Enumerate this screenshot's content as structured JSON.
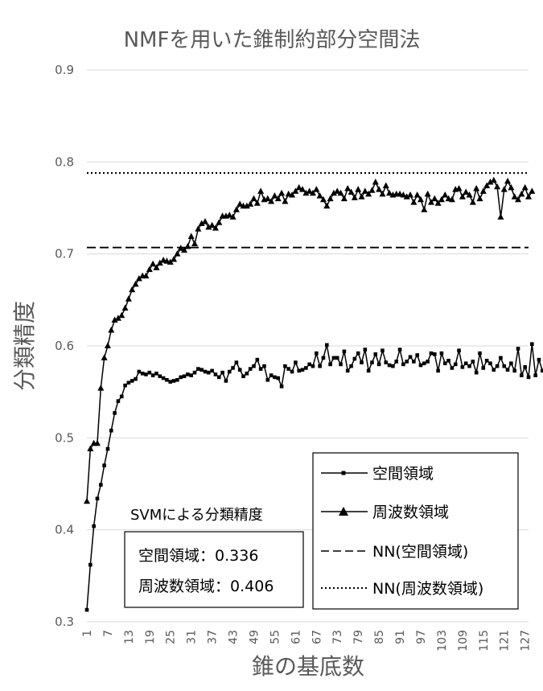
{
  "chart_data": {
    "type": "line",
    "title": "NMFを用いた錐制約部分空間法",
    "xlabel": "錐の基底数",
    "ylabel": "分類精度",
    "ylim": [
      0.3,
      0.9
    ],
    "yticks": [
      "0.3",
      "0.4",
      "0.5",
      "0.6",
      "0.7",
      "0.8",
      "0.9"
    ],
    "xlim": [
      1,
      128
    ],
    "xticks": [
      "1",
      "7",
      "13",
      "19",
      "25",
      "31",
      "37",
      "43",
      "49",
      "55",
      "61",
      "67",
      "73",
      "79",
      "85",
      "91",
      "97",
      "103",
      "109",
      "115",
      "121",
      "127"
    ],
    "grid": true,
    "legend": "bottom-right",
    "series": [
      {
        "name": "空間領域",
        "marker": "square",
        "x_start": 1,
        "values": [
          0.313,
          0.362,
          0.404,
          0.434,
          0.449,
          0.47,
          0.488,
          0.508,
          0.527,
          0.54,
          0.545,
          0.557,
          0.56,
          0.562,
          0.564,
          0.572,
          0.57,
          0.569,
          0.571,
          0.568,
          0.57,
          0.567,
          0.565,
          0.563,
          0.561,
          0.562,
          0.563,
          0.566,
          0.567,
          0.569,
          0.568,
          0.571,
          0.575,
          0.574,
          0.572,
          0.571,
          0.573,
          0.569,
          0.566,
          0.571,
          0.562,
          0.572,
          0.576,
          0.582,
          0.574,
          0.567,
          0.57,
          0.575,
          0.578,
          0.585,
          0.575,
          0.578,
          0.563,
          0.568,
          0.566,
          0.565,
          0.556,
          0.578,
          0.575,
          0.572,
          0.582,
          0.573,
          0.574,
          0.576,
          0.58,
          0.578,
          0.592,
          0.578,
          0.587,
          0.601,
          0.58,
          0.587,
          0.587,
          0.58,
          0.594,
          0.573,
          0.578,
          0.586,
          0.592,
          0.582,
          0.596,
          0.573,
          0.582,
          0.591,
          0.58,
          0.595,
          0.582,
          0.579,
          0.578,
          0.583,
          0.596,
          0.58,
          0.583,
          0.588,
          0.583,
          0.59,
          0.579,
          0.581,
          0.583,
          0.592,
          0.591,
          0.573,
          0.592,
          0.581,
          0.584,
          0.576,
          0.58,
          0.595,
          0.577,
          0.581,
          0.578,
          0.583,
          0.571,
          0.592,
          0.576,
          0.584,
          0.581,
          0.574,
          0.578,
          0.587,
          0.578,
          0.574,
          0.581,
          0.573,
          0.597,
          0.568,
          0.577,
          0.566,
          0.602,
          0.568,
          0.585,
          0.573,
          0.58
        ]
      },
      {
        "name": "周波数領域",
        "marker": "triangle",
        "x_start": 1,
        "values": [
          0.431,
          0.488,
          0.494,
          0.494,
          0.554,
          0.587,
          0.6,
          0.617,
          0.628,
          0.63,
          0.633,
          0.641,
          0.651,
          0.661,
          0.667,
          0.673,
          0.676,
          0.676,
          0.683,
          0.689,
          0.685,
          0.69,
          0.693,
          0.692,
          0.691,
          0.694,
          0.7,
          0.706,
          0.704,
          0.708,
          0.719,
          0.711,
          0.727,
          0.733,
          0.735,
          0.729,
          0.731,
          0.728,
          0.734,
          0.741,
          0.741,
          0.742,
          0.74,
          0.748,
          0.754,
          0.752,
          0.752,
          0.754,
          0.76,
          0.755,
          0.768,
          0.759,
          0.76,
          0.757,
          0.763,
          0.76,
          0.766,
          0.757,
          0.765,
          0.764,
          0.768,
          0.772,
          0.77,
          0.766,
          0.768,
          0.766,
          0.77,
          0.763,
          0.759,
          0.752,
          0.76,
          0.766,
          0.768,
          0.766,
          0.76,
          0.771,
          0.767,
          0.761,
          0.77,
          0.762,
          0.768,
          0.765,
          0.769,
          0.778,
          0.77,
          0.765,
          0.774,
          0.766,
          0.764,
          0.765,
          0.765,
          0.764,
          0.762,
          0.764,
          0.756,
          0.764,
          0.759,
          0.748,
          0.765,
          0.756,
          0.76,
          0.755,
          0.759,
          0.764,
          0.76,
          0.759,
          0.77,
          0.771,
          0.762,
          0.767,
          0.764,
          0.756,
          0.771,
          0.76,
          0.768,
          0.774,
          0.778,
          0.78,
          0.773,
          0.74,
          0.77,
          0.779,
          0.772,
          0.762,
          0.759,
          0.765,
          0.772,
          0.762,
          0.768
        ]
      },
      {
        "name": "NN(空間領域)",
        "style": "dashed",
        "constant": 0.707
      },
      {
        "name": "NN(周波数領域)",
        "style": "dotted",
        "constant": 0.788
      }
    ],
    "annotation": {
      "title": "SVMによる分類精度",
      "lines": [
        {
          "label": "空間領域：",
          "value": "0.336"
        },
        {
          "label": "周波数領域：",
          "value": "0.406"
        }
      ]
    },
    "colors": {
      "line": "#000000",
      "grid": "#d9d9d9",
      "text": "#595959",
      "title": "#595959"
    }
  }
}
